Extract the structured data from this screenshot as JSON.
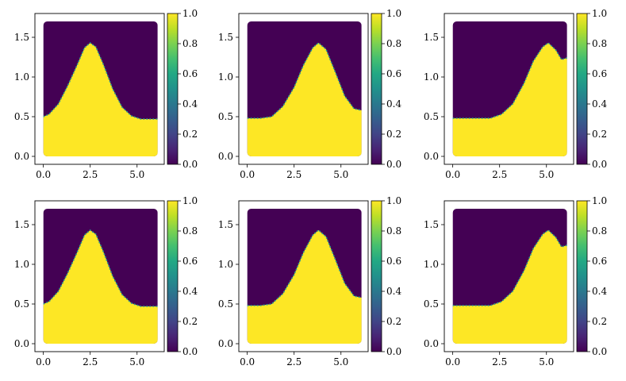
{
  "chart_data": [
    {
      "type": "heatmap",
      "title": "",
      "xlabel": "",
      "ylabel": "",
      "xlim": [
        -0.45,
        6.45
      ],
      "ylim": [
        -0.1,
        1.8
      ],
      "x_ticks": [
        "0.0",
        "2.5",
        "5.0"
      ],
      "y_ticks": [
        "0.0",
        "0.5",
        "1.0",
        "1.5"
      ],
      "colorbar": {
        "range": [
          0.0,
          1.0
        ],
        "ticks": [
          "0.0",
          "0.2",
          "0.4",
          "0.6",
          "0.8",
          "1.0"
        ],
        "colormap": "viridis"
      },
      "interface": {
        "x": [
          0.0,
          0.3,
          0.8,
          1.3,
          1.8,
          2.2,
          2.5,
          2.8,
          3.2,
          3.7,
          4.2,
          4.7,
          5.2,
          5.6,
          6.1
        ],
        "y": [
          0.5,
          0.53,
          0.66,
          0.89,
          1.15,
          1.37,
          1.43,
          1.38,
          1.16,
          0.85,
          0.62,
          0.51,
          0.47,
          0.47,
          0.47
        ]
      }
    },
    {
      "type": "heatmap",
      "title": "",
      "xlabel": "",
      "ylabel": "",
      "xlim": [
        -0.45,
        6.45
      ],
      "ylim": [
        -0.1,
        1.8
      ],
      "x_ticks": [
        "0.0",
        "2.5",
        "5.0"
      ],
      "y_ticks": [
        "0.0",
        "0.5",
        "1.0",
        "1.5"
      ],
      "colorbar": {
        "range": [
          0.0,
          1.0
        ],
        "ticks": [
          "0.0",
          "0.2",
          "0.4",
          "0.6",
          "0.8",
          "1.0"
        ],
        "colormap": "viridis"
      },
      "interface": {
        "x": [
          0.0,
          0.7,
          1.3,
          1.9,
          2.5,
          3.0,
          3.5,
          3.8,
          4.2,
          4.7,
          5.2,
          5.7,
          6.1
        ],
        "y": [
          0.48,
          0.48,
          0.5,
          0.63,
          0.87,
          1.15,
          1.37,
          1.43,
          1.35,
          1.06,
          0.76,
          0.6,
          0.58
        ]
      }
    },
    {
      "type": "heatmap",
      "title": "",
      "xlabel": "",
      "ylabel": "",
      "xlim": [
        -0.45,
        6.45
      ],
      "ylim": [
        -0.1,
        1.8
      ],
      "x_ticks": [
        "0.0",
        "2.5",
        "5.0"
      ],
      "y_ticks": [
        "0.0",
        "0.5",
        "1.0",
        "1.5"
      ],
      "colorbar": {
        "range": [
          0.0,
          1.0
        ],
        "ticks": [
          "0.0",
          "0.2",
          "0.4",
          "0.6",
          "0.8",
          "1.0"
        ],
        "colormap": "viridis"
      },
      "interface": {
        "x": [
          0.0,
          1.0,
          2.0,
          2.6,
          3.2,
          3.8,
          4.3,
          4.8,
          5.1,
          5.5,
          5.8,
          6.1
        ],
        "y": [
          0.48,
          0.48,
          0.48,
          0.53,
          0.66,
          0.92,
          1.2,
          1.38,
          1.43,
          1.34,
          1.22,
          1.24
        ]
      }
    },
    {
      "type": "heatmap",
      "title": "",
      "xlabel": "",
      "ylabel": "",
      "xlim": [
        -0.45,
        6.45
      ],
      "ylim": [
        -0.1,
        1.8
      ],
      "x_ticks": [
        "0.0",
        "2.5",
        "5.0"
      ],
      "y_ticks": [
        "0.0",
        "0.5",
        "1.0",
        "1.5"
      ],
      "colorbar": {
        "range": [
          0.0,
          1.0
        ],
        "ticks": [
          "0.0",
          "0.2",
          "0.4",
          "0.6",
          "0.8",
          "1.0"
        ],
        "colormap": "viridis"
      },
      "interface": {
        "x": [
          0.0,
          0.3,
          0.8,
          1.3,
          1.8,
          2.2,
          2.5,
          2.8,
          3.2,
          3.7,
          4.2,
          4.7,
          5.2,
          5.6,
          6.1
        ],
        "y": [
          0.5,
          0.53,
          0.66,
          0.89,
          1.15,
          1.37,
          1.43,
          1.38,
          1.16,
          0.85,
          0.62,
          0.51,
          0.47,
          0.47,
          0.47
        ]
      }
    },
    {
      "type": "heatmap",
      "title": "",
      "xlabel": "",
      "ylabel": "",
      "xlim": [
        -0.45,
        6.45
      ],
      "ylim": [
        -0.1,
        1.8
      ],
      "x_ticks": [
        "0.0",
        "2.5",
        "5.0"
      ],
      "y_ticks": [
        "0.0",
        "0.5",
        "1.0",
        "1.5"
      ],
      "colorbar": {
        "range": [
          0.0,
          1.0
        ],
        "ticks": [
          "0.0",
          "0.2",
          "0.4",
          "0.6",
          "0.8",
          "1.0"
        ],
        "colormap": "viridis"
      },
      "interface": {
        "x": [
          0.0,
          0.7,
          1.3,
          1.9,
          2.5,
          3.0,
          3.5,
          3.8,
          4.2,
          4.7,
          5.2,
          5.7,
          6.1
        ],
        "y": [
          0.48,
          0.48,
          0.5,
          0.63,
          0.87,
          1.15,
          1.37,
          1.43,
          1.35,
          1.06,
          0.76,
          0.6,
          0.58
        ]
      }
    },
    {
      "type": "heatmap",
      "title": "",
      "xlabel": "",
      "ylabel": "",
      "xlim": [
        -0.45,
        6.45
      ],
      "ylim": [
        -0.1,
        1.8
      ],
      "x_ticks": [
        "0.0",
        "2.5",
        "5.0"
      ],
      "y_ticks": [
        "0.0",
        "0.5",
        "1.0",
        "1.5"
      ],
      "colorbar": {
        "range": [
          0.0,
          1.0
        ],
        "ticks": [
          "0.0",
          "0.2",
          "0.4",
          "0.6",
          "0.8",
          "1.0"
        ],
        "colormap": "viridis"
      },
      "interface": {
        "x": [
          0.0,
          1.0,
          2.0,
          2.6,
          3.2,
          3.8,
          4.3,
          4.8,
          5.1,
          5.5,
          5.8,
          6.1
        ],
        "y": [
          0.48,
          0.48,
          0.48,
          0.53,
          0.66,
          0.92,
          1.2,
          1.38,
          1.43,
          1.34,
          1.22,
          1.24
        ]
      }
    }
  ],
  "colors": {
    "low": "#440154",
    "high": "#fde725",
    "interface": "#2a9d8f"
  }
}
